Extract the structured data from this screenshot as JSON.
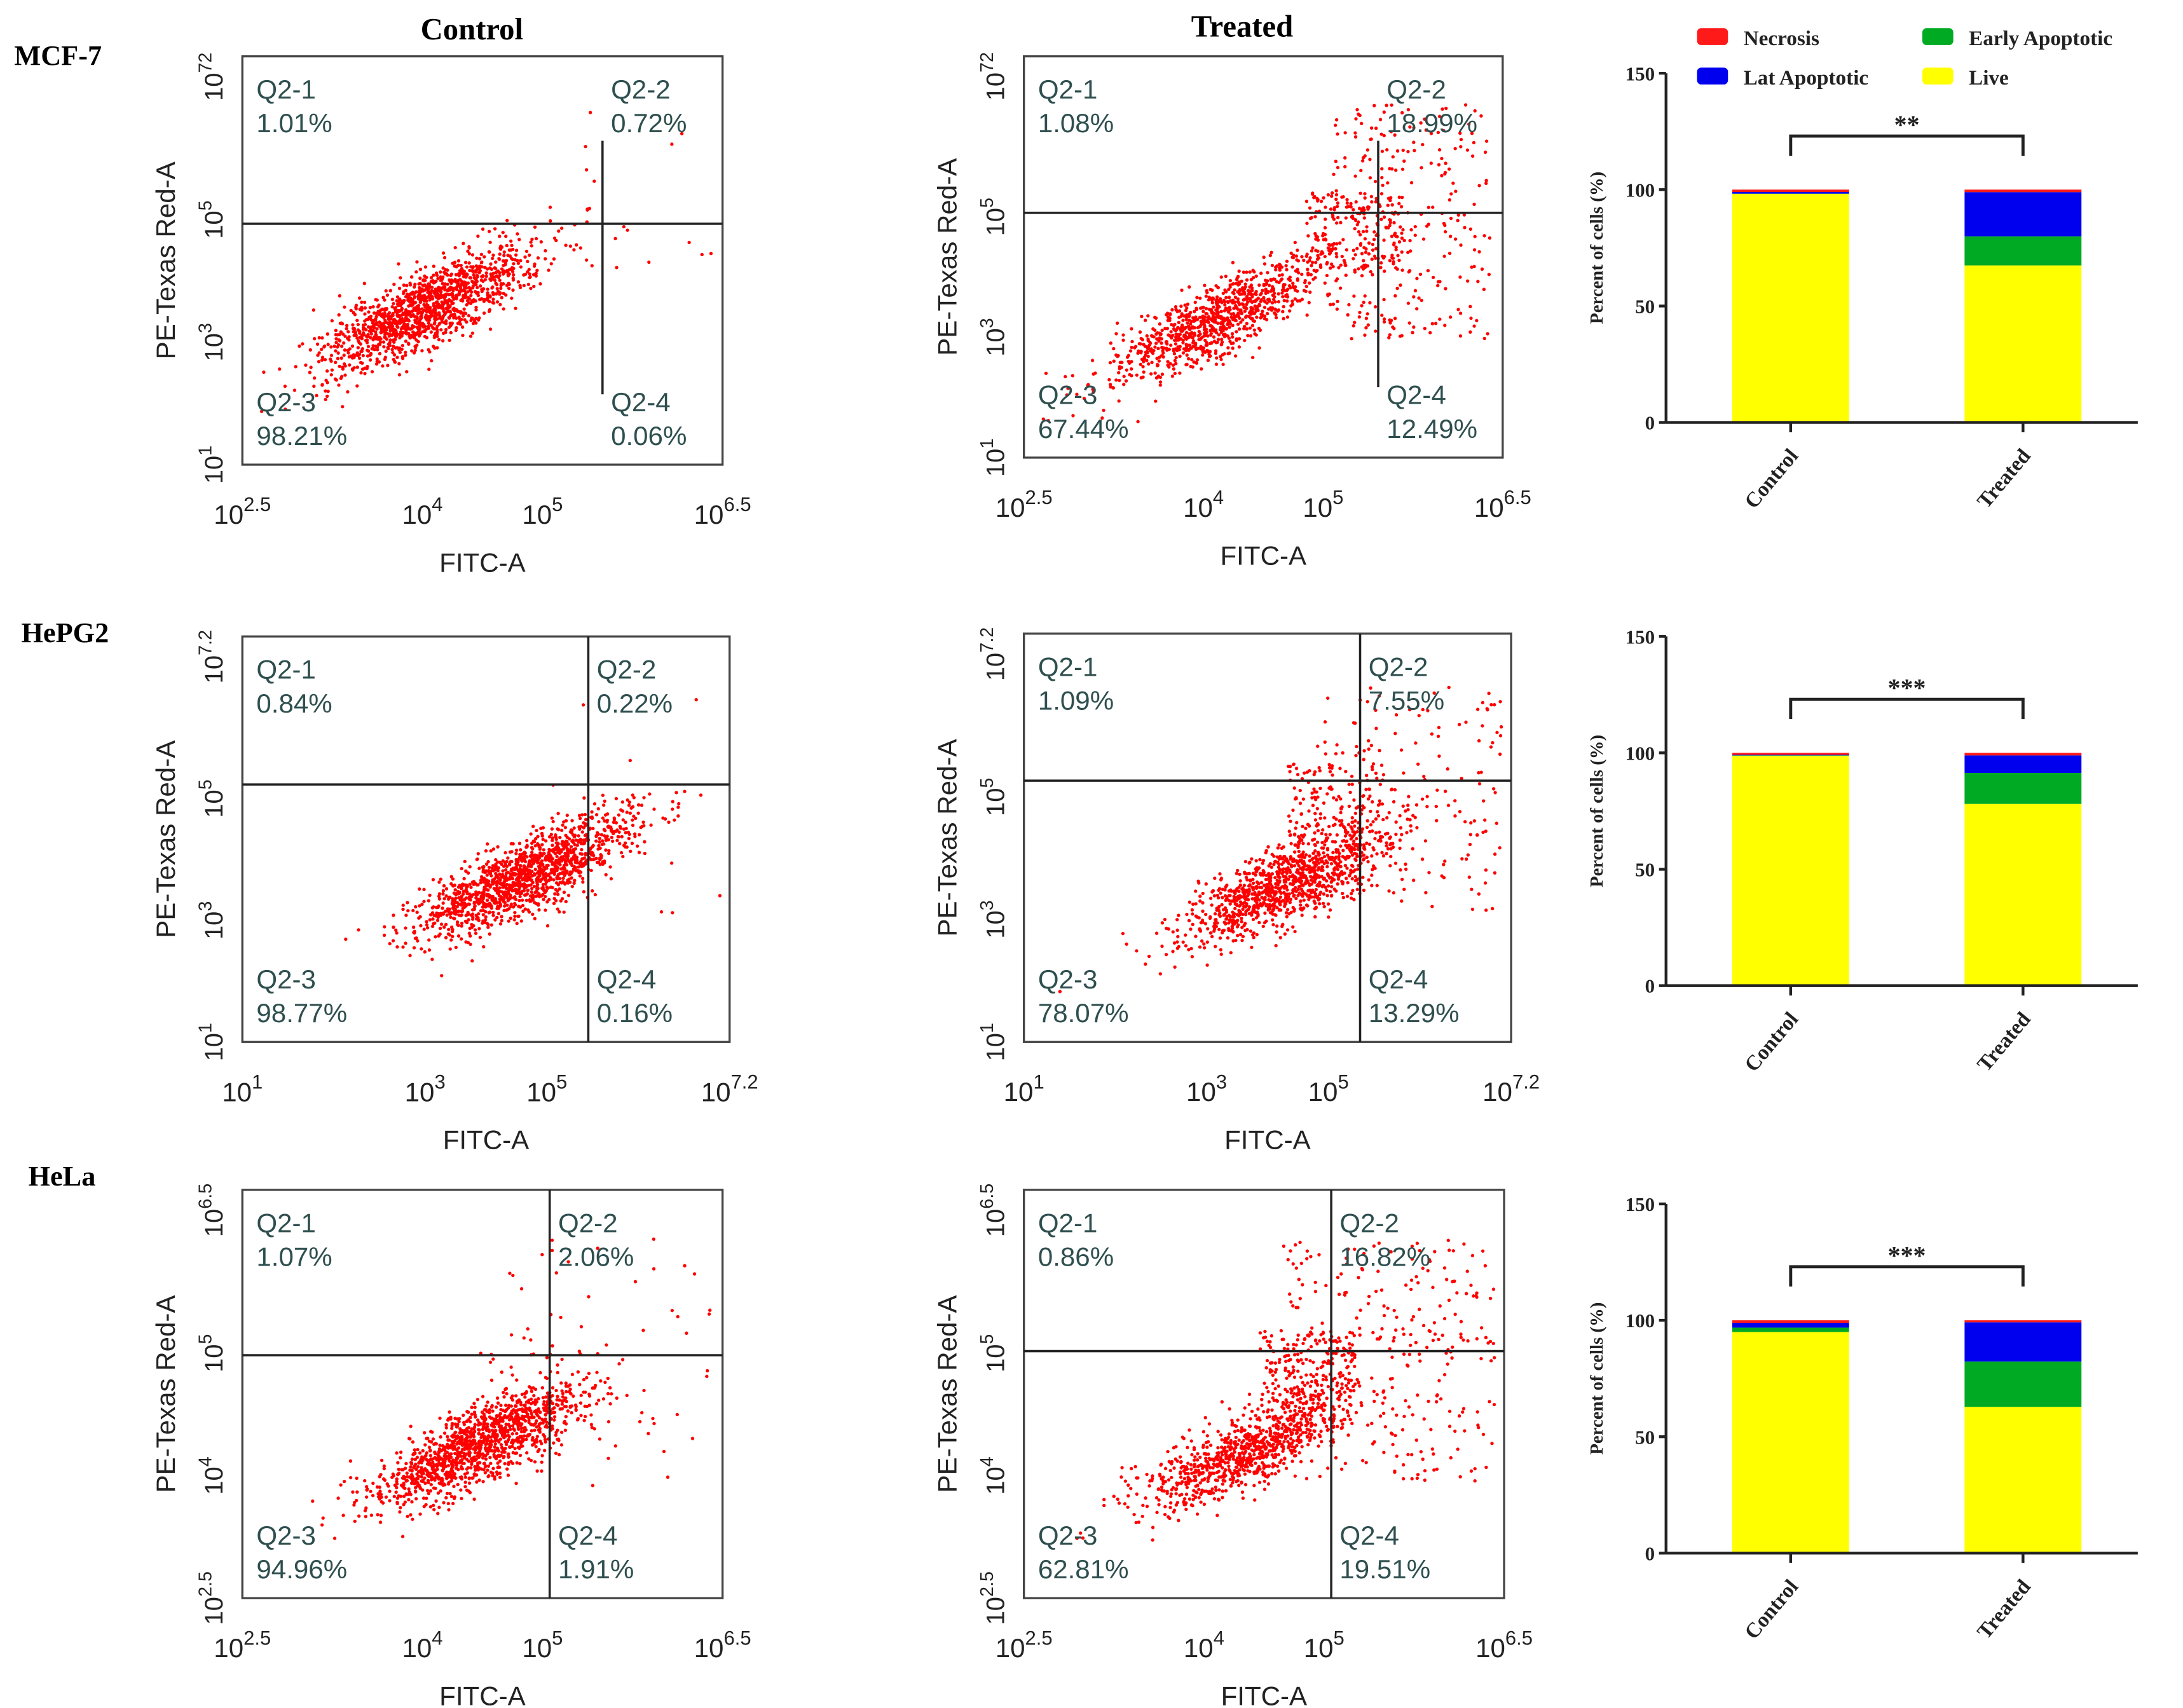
{
  "column_titles": [
    "Control",
    "Treated"
  ],
  "colors": {
    "necrosis": "#ff1a1a",
    "late": "#0000ee",
    "early": "#00aa22",
    "live": "#ffff00",
    "dots": "#ff0000",
    "axis": "#222222",
    "text": "#2f4f4f"
  },
  "chart_data": [
    {
      "type": "scatter",
      "cell_line": "MCF-7",
      "xlabel": "FITC-A",
      "ylabel": "PE-Texas Red-A",
      "x_ticks": [
        [
          "10",
          "2.5"
        ],
        [
          "10",
          "4"
        ],
        [
          "10",
          "5"
        ],
        [
          "10",
          "6.5"
        ]
      ],
      "y_ticks": [
        [
          "10",
          "72"
        ],
        [
          "10",
          "5"
        ],
        [
          "10",
          "3"
        ],
        [
          "10",
          "1"
        ]
      ],
      "panels": [
        {
          "condition": "Control",
          "quadrants": [
            [
              "Q2-1",
              "1.01%"
            ],
            [
              "Q2-2",
              "0.72%"
            ],
            [
              "Q2-3",
              "98.21%"
            ],
            [
              "Q2-4",
              "0.06%"
            ]
          ]
        },
        {
          "condition": "Treated",
          "quadrants": [
            [
              "Q2-1",
              "1.08%"
            ],
            [
              "Q2-2",
              "18.99%"
            ],
            [
              "Q2-3",
              "67.44%"
            ],
            [
              "Q2-4",
              "12.49%"
            ]
          ]
        }
      ]
    },
    {
      "type": "scatter",
      "cell_line": "HePG2",
      "xlabel": "FITC-A",
      "ylabel": "PE-Texas Red-A",
      "x_ticks": [
        [
          "10",
          "1"
        ],
        [
          "10",
          "3"
        ],
        [
          "10",
          "5"
        ],
        [
          "10",
          "7.2"
        ]
      ],
      "y_ticks": [
        [
          "10",
          "7.2"
        ],
        [
          "10",
          "5"
        ],
        [
          "10",
          "3"
        ],
        [
          "10",
          "1"
        ]
      ],
      "panels": [
        {
          "condition": "Control",
          "quadrants": [
            [
              "Q2-1",
              "0.84%"
            ],
            [
              "Q2-2",
              "0.22%"
            ],
            [
              "Q2-3",
              "98.77%"
            ],
            [
              "Q2-4",
              "0.16%"
            ]
          ]
        },
        {
          "condition": "Treated",
          "quadrants": [
            [
              "Q2-1",
              "1.09%"
            ],
            [
              "Q2-2",
              "7.55%"
            ],
            [
              "Q2-3",
              "78.07%"
            ],
            [
              "Q2-4",
              "13.29%"
            ]
          ]
        }
      ]
    },
    {
      "type": "scatter",
      "cell_line": "HeLa",
      "xlabel": "FITC-A",
      "ylabel": "PE-Texas Red-A",
      "x_ticks": [
        [
          "10",
          "2.5"
        ],
        [
          "10",
          "4"
        ],
        [
          "10",
          "5"
        ],
        [
          "10",
          "6.5"
        ]
      ],
      "y_ticks": [
        [
          "10",
          "6.5"
        ],
        [
          "10",
          "5"
        ],
        [
          "10",
          "4"
        ],
        [
          "10",
          "2.5"
        ]
      ],
      "panels": [
        {
          "condition": "Control",
          "quadrants": [
            [
              "Q2-1",
              "1.07%"
            ],
            [
              "Q2-2",
              "2.06%"
            ],
            [
              "Q2-3",
              "94.96%"
            ],
            [
              "Q2-4",
              "1.91%"
            ]
          ]
        },
        {
          "condition": "Treated",
          "quadrants": [
            [
              "Q2-1",
              "0.86%"
            ],
            [
              "Q2-2",
              "16.82%"
            ],
            [
              "Q2-3",
              "62.81%"
            ],
            [
              "Q2-4",
              "19.51%"
            ]
          ]
        }
      ]
    },
    {
      "type": "bar",
      "stacked": true,
      "ylabel": "Percent of  cells (%)",
      "ylim": [
        0,
        150
      ],
      "y_ticks": [
        "0",
        "50",
        "100",
        "150"
      ],
      "categories": [
        "Control",
        "Treated"
      ],
      "legend": [
        "Necrosis",
        "Early Apoptotic",
        "Lat Apoptotic",
        "Live"
      ],
      "groups": [
        {
          "cell_line": "MCF-7",
          "significance": "**",
          "series": {
            "Live": [
              98.21,
              67.44
            ],
            "Early Apoptotic": [
              0.06,
              12.49
            ],
            "Lat Apoptotic": [
              0.72,
              18.99
            ],
            "Necrosis": [
              1.01,
              1.08
            ]
          }
        },
        {
          "cell_line": "HePG2",
          "significance": "***",
          "series": {
            "Live": [
              98.77,
              78.07
            ],
            "Early Apoptotic": [
              0.16,
              13.29
            ],
            "Lat Apoptotic": [
              0.22,
              7.55
            ],
            "Necrosis": [
              0.84,
              1.09
            ]
          }
        },
        {
          "cell_line": "HeLa",
          "significance": "***",
          "series": {
            "Live": [
              94.96,
              62.81
            ],
            "Early Apoptotic": [
              1.91,
              19.51
            ],
            "Lat Apoptotic": [
              2.06,
              16.82
            ],
            "Necrosis": [
              1.07,
              0.86
            ]
          }
        }
      ]
    }
  ]
}
